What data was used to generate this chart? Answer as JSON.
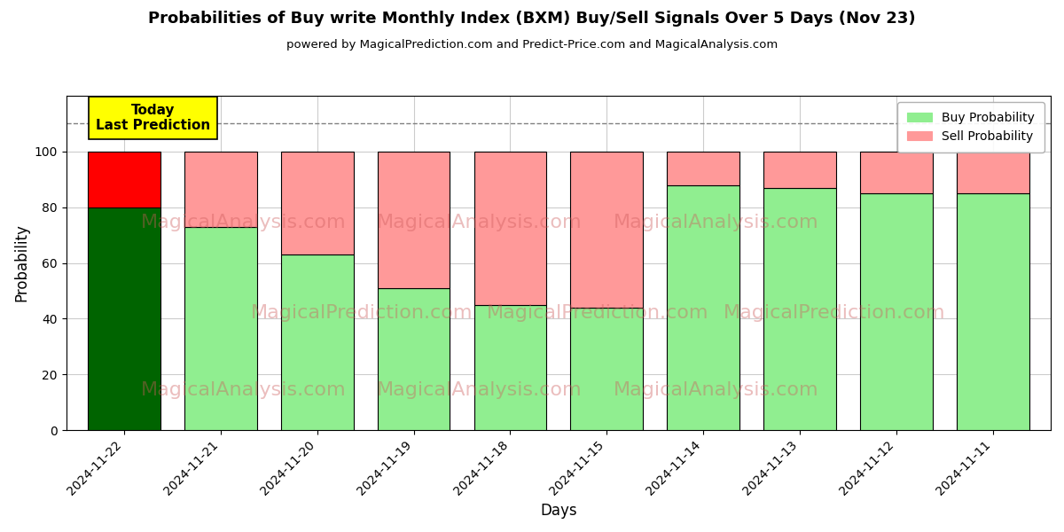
{
  "title": "Probabilities of Buy write Monthly Index (BXM) Buy/Sell Signals Over 5 Days (Nov 23)",
  "subtitle": "powered by MagicalPrediction.com and Predict-Price.com and MagicalAnalysis.com",
  "xlabel": "Days",
  "ylabel": "Probability",
  "categories": [
    "2024-11-22",
    "2024-11-21",
    "2024-11-20",
    "2024-11-19",
    "2024-11-18",
    "2024-11-15",
    "2024-11-14",
    "2024-11-13",
    "2024-11-12",
    "2024-11-11"
  ],
  "buy_values": [
    80,
    73,
    63,
    51,
    45,
    44,
    88,
    87,
    85,
    85
  ],
  "sell_values": [
    20,
    27,
    37,
    49,
    55,
    56,
    12,
    13,
    15,
    15
  ],
  "buy_colors": [
    "#006400",
    "#90EE90",
    "#90EE90",
    "#90EE90",
    "#90EE90",
    "#90EE90",
    "#90EE90",
    "#90EE90",
    "#90EE90",
    "#90EE90"
  ],
  "sell_colors": [
    "#FF0000",
    "#FF9999",
    "#FF9999",
    "#FF9999",
    "#FF9999",
    "#FF9999",
    "#FF9999",
    "#FF9999",
    "#FF9999",
    "#FF9999"
  ],
  "legend_buy_color": "#90EE90",
  "legend_sell_color": "#FF9999",
  "today_box_color": "#FFFF00",
  "today_text": "Today\nLast Prediction",
  "dashed_line_y": 110,
  "ylim": [
    0,
    120
  ],
  "yticks": [
    0,
    20,
    40,
    60,
    80,
    100
  ],
  "background_color": "#ffffff",
  "grid_color": "#cccccc",
  "watermark_row1": "MagicalAnalysis.com",
  "watermark_row2": "MagicalPrediction.com"
}
